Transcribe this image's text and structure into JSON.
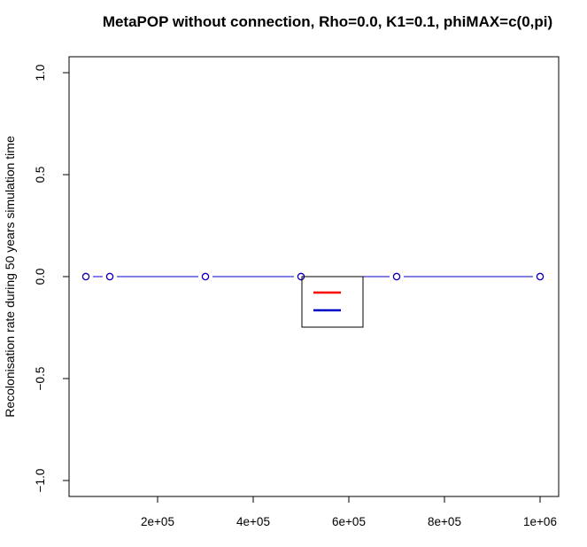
{
  "chart_data": {
    "type": "line",
    "title": "MetaPOP without connection, Rho=0.0, K1=0.1, phiMAX=c(0,pi)",
    "xlabel": "",
    "ylabel": "Recolonisation rate during 50 years simulation time",
    "xlim": [
      0,
      1000000
    ],
    "ylim": [
      -1.0,
      1.0
    ],
    "x_ticks": [
      200000,
      400000,
      600000,
      800000,
      1000000
    ],
    "x_tick_labels": [
      "2e+05",
      "4e+05",
      "6e+05",
      "8e+05",
      "1e+06"
    ],
    "y_ticks": [
      -1.0,
      -0.5,
      0.0,
      0.5,
      1.0
    ],
    "y_tick_labels": [
      "−1.0",
      "−0.5",
      "0.0",
      "0.5",
      "1.0"
    ],
    "grid": false,
    "legend_position": "center",
    "series": [
      {
        "color": "#ff0000",
        "x": [
          50000,
          100000,
          300000,
          500000,
          700000,
          1000000
        ],
        "values": [
          0,
          0,
          0,
          0,
          0,
          0
        ]
      },
      {
        "color": "#0000cc",
        "x": [
          50000,
          100000,
          300000,
          500000,
          700000,
          1000000
        ],
        "values": [
          0,
          0,
          0,
          0,
          0,
          0
        ]
      }
    ]
  }
}
